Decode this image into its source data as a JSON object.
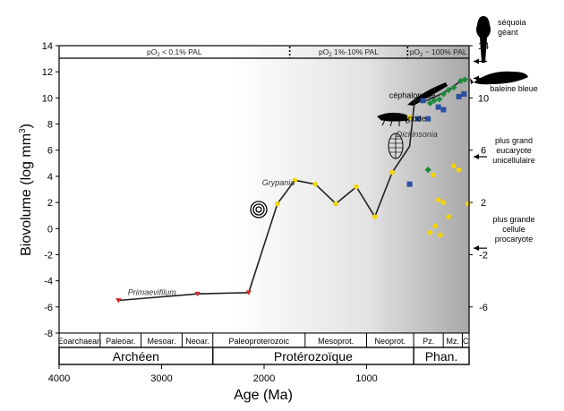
{
  "chart_data": {
    "type": "scatter",
    "xlabel": "Age (Ma)",
    "ylabel_main": "Biovolume (log mm",
    "ylabel_sup": "3",
    "ylabel_close": ")",
    "xlim": [
      4000,
      0
    ],
    "ylim": [
      -8,
      14
    ],
    "x_ticks": [
      "4000",
      "3000",
      "2000",
      "1000"
    ],
    "y_ticks": [
      "-8",
      "-6",
      "-4",
      "-2",
      "0",
      "2",
      "4",
      "6",
      "8",
      "10",
      "12",
      "14"
    ],
    "y_ticks_right": [
      "-6",
      "-2",
      "2",
      "6",
      "10",
      "14"
    ],
    "oxygen_bands": [
      {
        "label_pre": "pO",
        "label_sub": "2",
        "label_post": " < 0.1% PAL",
        "from": 4000,
        "to": 1750
      },
      {
        "label_pre": "pO",
        "label_sub": "2",
        "label_post": " 1%-10% PAL",
        "from": 1750,
        "to": 600
      },
      {
        "label_pre": "pO",
        "label_sub": "2",
        "label_post": " ~ 100% PAL",
        "from": 600,
        "to": 0
      }
    ],
    "eras_small": [
      {
        "label": "Eoarchaean",
        "from": 4000,
        "to": 3600
      },
      {
        "label": "Paleoar.",
        "from": 3600,
        "to": 3200
      },
      {
        "label": "Mesoar.",
        "from": 3200,
        "to": 2800
      },
      {
        "label": "Neoar.",
        "from": 2800,
        "to": 2500
      },
      {
        "label": "Paleoproterozoic",
        "from": 2500,
        "to": 1600
      },
      {
        "label": "Mesoprot.",
        "from": 1600,
        "to": 1000
      },
      {
        "label": "Neoprot.",
        "from": 1000,
        "to": 541
      },
      {
        "label": "Pz.",
        "from": 541,
        "to": 252
      },
      {
        "label": "Mz.",
        "from": 252,
        "to": 66
      },
      {
        "label": "C",
        "from": 66,
        "to": 0
      }
    ],
    "eons": [
      {
        "label": "Archéen",
        "from": 4000,
        "to": 2500
      },
      {
        "label": "Protérozoïque",
        "from": 2500,
        "to": 541
      },
      {
        "label": "Phan.",
        "from": 541,
        "to": 0
      }
    ],
    "series": [
      {
        "marker": "triangle",
        "color": "#d62828",
        "points": [
          [
            3420,
            -5.5
          ],
          [
            2650,
            -5.0
          ],
          [
            2150,
            -4.9
          ]
        ]
      },
      {
        "marker": "circle",
        "color": "#f2d500",
        "points": [
          [
            1870,
            1.9
          ],
          [
            1700,
            3.7
          ],
          [
            1500,
            3.4
          ],
          [
            1300,
            1.9
          ],
          [
            1100,
            3.2
          ],
          [
            920,
            0.9
          ],
          [
            750,
            4.3
          ],
          [
            580,
            8.5
          ],
          [
            350,
            4.1
          ],
          [
            300,
            2.2
          ],
          [
            250,
            2.0
          ],
          [
            200,
            0.9
          ],
          [
            380,
            -0.3
          ],
          [
            330,
            0.2
          ],
          [
            280,
            -0.5
          ],
          [
            150,
            4.8
          ],
          [
            100,
            4.5
          ],
          [
            10,
            1.9
          ]
        ]
      },
      {
        "marker": "square",
        "color": "#2b50a0",
        "points": [
          [
            580,
            3.4
          ],
          [
            500,
            8.4
          ],
          [
            450,
            9.8
          ],
          [
            400,
            8.4
          ],
          [
            300,
            9.3
          ],
          [
            250,
            9.1
          ],
          [
            100,
            10.1
          ],
          [
            50,
            10.3
          ]
        ]
      },
      {
        "marker": "diamond",
        "color": "#1e8a3e",
        "points": [
          [
            400,
            4.5
          ],
          [
            380,
            9.6
          ],
          [
            340,
            9.8
          ],
          [
            290,
            9.9
          ],
          [
            250,
            10.3
          ],
          [
            200,
            10.6
          ],
          [
            150,
            10.8
          ],
          [
            80,
            11.3
          ],
          [
            40,
            11.4
          ]
        ]
      }
    ],
    "trend_line": [
      [
        3420,
        -5.5
      ],
      [
        2650,
        -5.0
      ],
      [
        2150,
        -4.9
      ],
      [
        1870,
        1.9
      ],
      [
        1700,
        3.7
      ],
      [
        1500,
        3.4
      ],
      [
        1300,
        1.9
      ],
      [
        1100,
        3.2
      ],
      [
        920,
        0.9
      ],
      [
        750,
        4.3
      ],
      [
        580,
        6.3
      ],
      [
        530,
        9.9
      ],
      [
        440,
        9.7
      ],
      [
        300,
        10.2
      ],
      [
        200,
        10.6
      ],
      [
        100,
        11.2
      ],
      [
        40,
        11.4
      ]
    ],
    "annotations": [
      {
        "text": "Primaevifilum",
        "italic": true,
        "x": 3330,
        "y": -5.1
      },
      {
        "text": "Grypania",
        "italic": true,
        "x": 2020,
        "y": 3.3
      },
      {
        "text": "Dickinsonia",
        "italic": true,
        "x": 710,
        "y": 7.0
      },
      {
        "text": "arthropode",
        "italic": false,
        "x": 800,
        "y": 8.2
      },
      {
        "text": "céphalopode",
        "italic": false,
        "x": 780,
        "y": 10.0
      }
    ],
    "right_labels": [
      {
        "lines": [
          "séquoia",
          "géant"
        ],
        "arrow_y": 12.8
      },
      {
        "lines": [
          "baleine bleue"
        ],
        "arrow_y": 11.5
      },
      {
        "lines": [
          "plus grand",
          "eucaryote",
          "unicellulaire"
        ],
        "arrow_y": 5.5
      },
      {
        "lines": [
          "plus grande",
          "cellule",
          "procaryote"
        ],
        "arrow_y": -1.5
      }
    ]
  }
}
